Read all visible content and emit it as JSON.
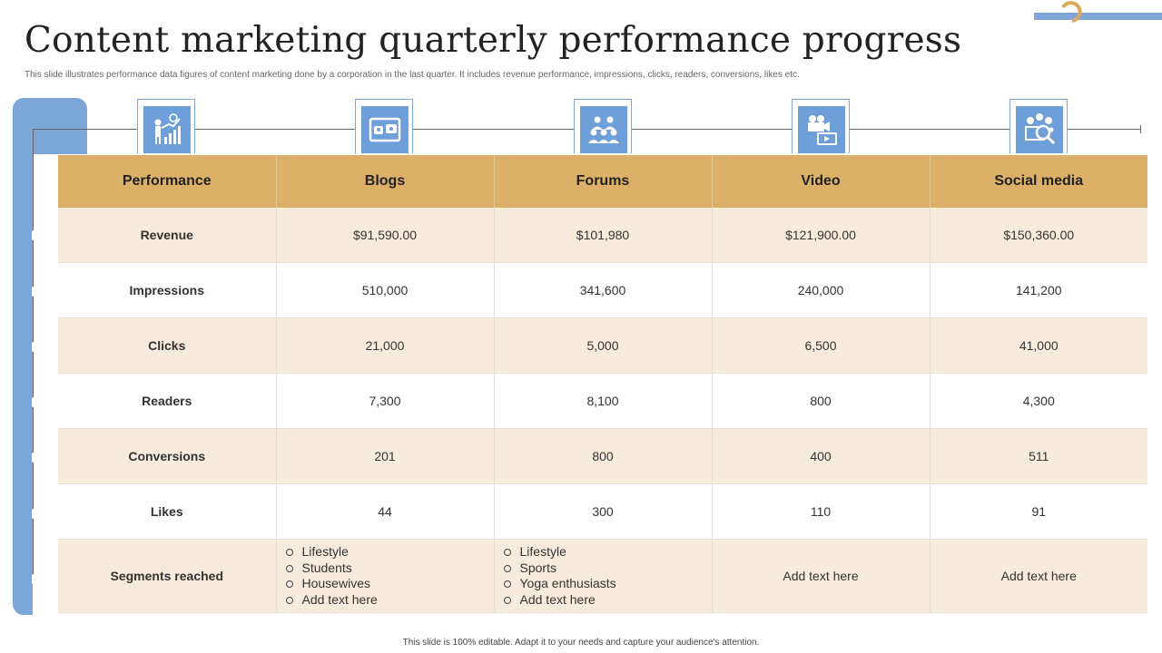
{
  "title": "Content marketing quarterly performance progress",
  "subtitle": "This slide illustrates performance data figures of content marketing done by a corporation in the last quarter. It includes revenue performance, impressions, clicks, readers, conversions, likes etc.",
  "colors": {
    "accent_blue": "#7da7d9",
    "header_gold": "#ddb06a",
    "row_tint": "#f7ecdc"
  },
  "icons": [
    "growth-chart-icon",
    "video-screen-icon",
    "group-meeting-icon",
    "video-camera-icon",
    "social-media-search-icon"
  ],
  "table": {
    "headers": [
      "Performance",
      "Blogs",
      "Forums",
      "Video",
      "Social media"
    ],
    "rows": [
      {
        "label": "Revenue",
        "cells": [
          "$91,590.00",
          "$101,980",
          "$121,900.00",
          "$150,360.00"
        ]
      },
      {
        "label": "Impressions",
        "cells": [
          "510,000",
          "341,600",
          "240,000",
          "141,200"
        ]
      },
      {
        "label": "Clicks",
        "cells": [
          "21,000",
          "5,000",
          "6,500",
          "41,000"
        ]
      },
      {
        "label": "Readers",
        "cells": [
          "7,300",
          "8,100",
          "800",
          "4,300"
        ]
      },
      {
        "label": "Conversions",
        "cells": [
          "201",
          "800",
          "400",
          "511"
        ]
      },
      {
        "label": "Likes",
        "cells": [
          "44",
          "300",
          "110",
          "91"
        ]
      }
    ],
    "segments": {
      "label": "Segments reached",
      "blogs": [
        "Lifestyle",
        "Students",
        "Housewives",
        "Add text here"
      ],
      "forums": [
        "Lifestyle",
        "Sports",
        "Yoga enthusiasts",
        "Add text here"
      ],
      "video": "Add text here",
      "social": "Add text here"
    }
  },
  "footer": "This slide is 100% editable. Adapt it to your needs and capture your audience's attention."
}
